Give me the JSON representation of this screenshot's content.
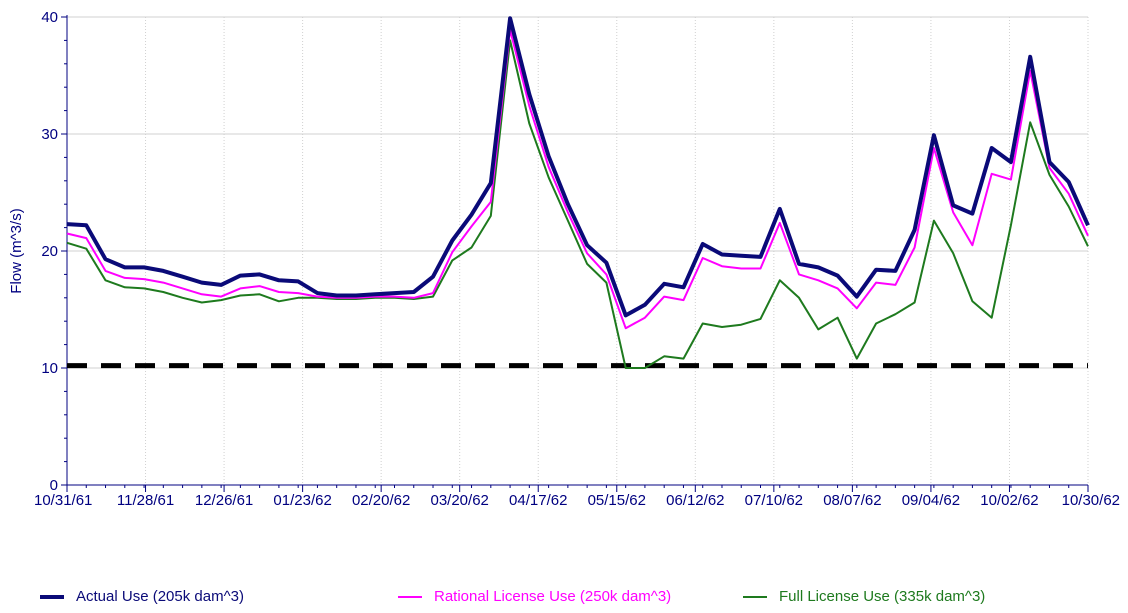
{
  "chart_data": {
    "type": "line",
    "title": "",
    "xlabel": "",
    "ylabel": "Flow (m^3/s)",
    "ylim": [
      0,
      40
    ],
    "yticks": [
      0,
      10,
      20,
      30,
      40
    ],
    "xticks": [
      "10/31/61",
      "11/28/61",
      "12/26/61",
      "01/23/62",
      "02/20/62",
      "03/20/62",
      "04/17/62",
      "05/15/62",
      "06/12/62",
      "07/10/62",
      "08/07/62",
      "09/04/62",
      "10/02/62",
      "10/30/62"
    ],
    "grid": true,
    "legend": "bottom",
    "threshold": {
      "value": 10.2,
      "color": "#000000",
      "style": "dashed"
    },
    "series": [
      {
        "name": "Actual Use (205k dam^3)",
        "color": "#0a0a78",
        "values": [
          22.3,
          22.2,
          19.3,
          18.6,
          18.6,
          18.3,
          17.8,
          17.3,
          17.1,
          17.9,
          18.0,
          17.5,
          17.4,
          16.4,
          16.2,
          16.2,
          16.3,
          16.4,
          16.5,
          17.8,
          20.9,
          23.1,
          25.8,
          39.9,
          33.4,
          28.1,
          24.0,
          20.5,
          19.0,
          14.5,
          15.4,
          17.2,
          16.9,
          20.6,
          19.7,
          19.6,
          19.5,
          23.6,
          18.9,
          18.6,
          17.9,
          16.1,
          18.4,
          18.3,
          21.8,
          29.9,
          23.9,
          23.2,
          28.8,
          27.6,
          36.6,
          27.6,
          25.9,
          22.2
        ]
      },
      {
        "name": "Rational License Use (250k dam^3)",
        "color": "#ff00ff",
        "values": [
          21.5,
          21.1,
          18.3,
          17.7,
          17.6,
          17.3,
          16.8,
          16.3,
          16.1,
          16.8,
          17.0,
          16.5,
          16.4,
          16.1,
          16.0,
          16.0,
          16.1,
          16.1,
          16.0,
          16.4,
          19.9,
          22.1,
          24.2,
          38.9,
          32.4,
          27.2,
          23.3,
          19.8,
          18.0,
          13.4,
          14.3,
          16.1,
          15.8,
          19.4,
          18.7,
          18.5,
          18.5,
          22.4,
          18.0,
          17.5,
          16.8,
          15.1,
          17.3,
          17.1,
          20.3,
          28.8,
          23.3,
          20.5,
          26.6,
          26.1,
          35.4,
          27.1,
          24.9,
          21.3
        ]
      },
      {
        "name": "Full License Use (335k dam^3)",
        "color": "#1e7a1e",
        "values": [
          20.7,
          20.2,
          17.5,
          16.9,
          16.8,
          16.5,
          16.0,
          15.6,
          15.8,
          16.2,
          16.3,
          15.7,
          16.0,
          16.0,
          15.9,
          15.9,
          16.0,
          16.0,
          15.9,
          16.1,
          19.2,
          20.3,
          23.0,
          38.0,
          30.9,
          26.3,
          22.6,
          18.9,
          17.3,
          10.0,
          10.0,
          11.0,
          10.8,
          13.8,
          13.5,
          13.7,
          14.2,
          17.5,
          16.0,
          13.3,
          14.3,
          10.8,
          13.8,
          14.6,
          15.6,
          22.6,
          19.8,
          15.7,
          14.3,
          22.2,
          31.0,
          26.5,
          23.8,
          20.4
        ]
      }
    ]
  }
}
